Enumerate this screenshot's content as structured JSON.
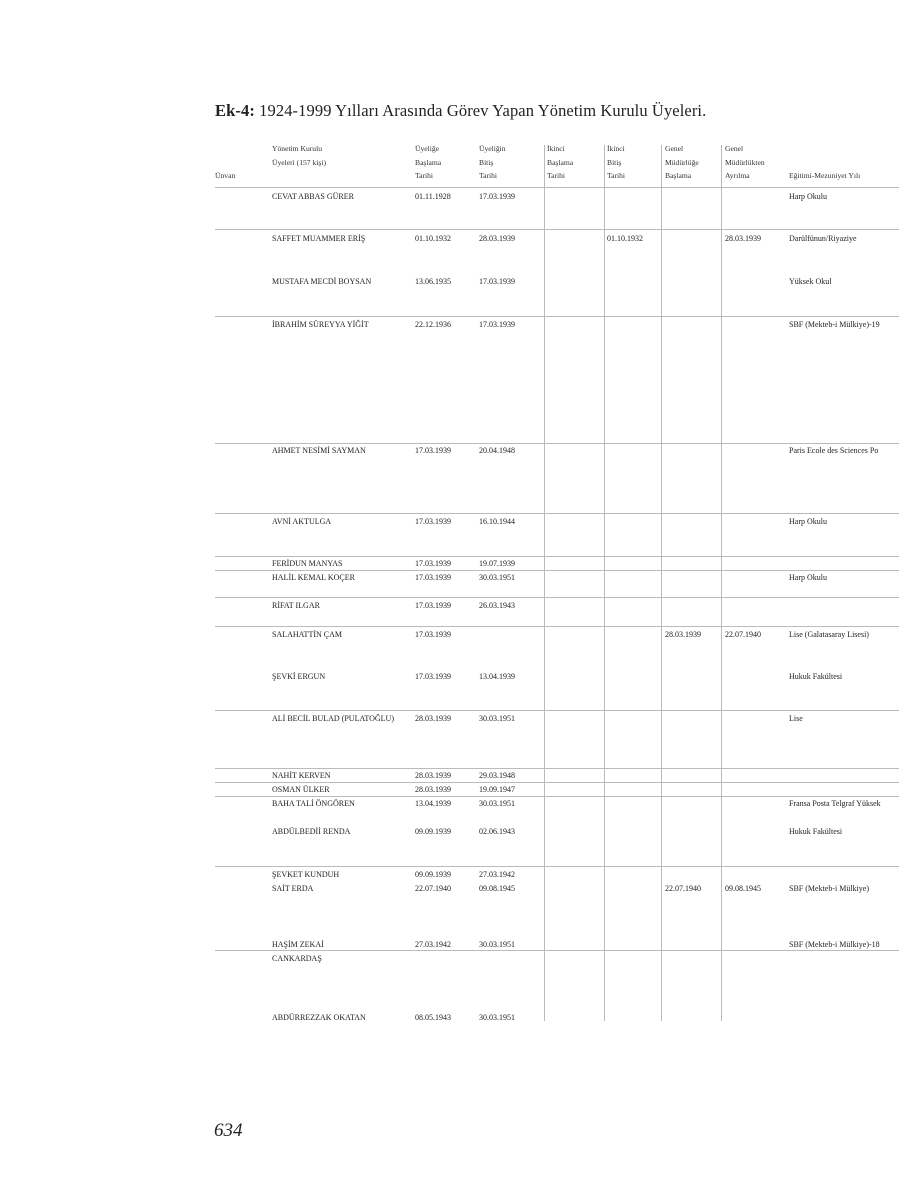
{
  "title": {
    "prefix": "Ek-4:",
    "text": " 1924-1999 Yılları Arasında Görev Yapan Yönetim Kurulu Üyeleri."
  },
  "columns": [
    {
      "lines": [
        "",
        "",
        "Ünvan"
      ]
    },
    {
      "lines": [
        "Yönetim Kurulu",
        "Üyeleri (157 kişi)",
        ""
      ]
    },
    {
      "lines": [
        "Üyeliğe",
        "Başlama",
        "Tarihi"
      ]
    },
    {
      "lines": [
        "Üyeliğin",
        "Bitiş",
        "Tarihi"
      ]
    },
    {
      "lines": [
        "İkinci",
        "Başlama",
        "Tarihi"
      ]
    },
    {
      "lines": [
        "İkinci",
        "Bitiş",
        "Tarihi"
      ]
    },
    {
      "lines": [
        "Genel",
        "Müdürlüğe",
        "Başlama"
      ]
    },
    {
      "lines": [
        "Genel",
        "Müdürlükten",
        "Ayrılma"
      ]
    },
    {
      "lines": [
        "",
        "",
        "Eğitimi-Mezuniyet Yılı"
      ]
    }
  ],
  "rows": [
    [
      "",
      "CEVAT ABBAS GÜRER",
      "01.11.1928",
      "17.03.1939",
      "",
      "",
      "",
      "",
      "Harp Okulu"
    ],
    [
      "",
      "SAFFET MUAMMER ERİŞ",
      "01.10.1932",
      "28.03.1939",
      "",
      "01.10.1932",
      "",
      "28.03.1939",
      "Darülfünun/Riyaziye"
    ],
    [
      "",
      "MUSTAFA MECDİ BOYSAN",
      "13.06.1935",
      "17.03.1939",
      "",
      "",
      "",
      "",
      "Yüksek Okul"
    ],
    [
      "",
      "İBRAHİM SÜREYYA YİĞİT",
      "22.12.1936",
      "17.03.1939",
      "",
      "",
      "",
      "",
      "SBF (Mekteb-i Mülkiye)-19"
    ],
    [
      "",
      "AHMET NESİMİ SAYMAN",
      "17.03.1939",
      "20.04.1948",
      "",
      "",
      "",
      "",
      "Paris Ecole des Sciences Po"
    ],
    [
      "",
      "AVNİ AKTULGA",
      "17.03.1939",
      "16.10.1944",
      "",
      "",
      "",
      "",
      "Harp Okulu"
    ],
    [
      "",
      "FERİDUN MANYAS",
      "17.03.1939",
      "19.07.1939",
      "",
      "",
      "",
      "",
      ""
    ],
    [
      "",
      "HALİL KEMAL KOÇER",
      "17.03.1939",
      "30.03.1951",
      "",
      "",
      "",
      "",
      "Harp Okulu"
    ],
    [
      "",
      "RİFAT ILGAR",
      "17.03.1939",
      "26.03.1943",
      "",
      "",
      "",
      "",
      ""
    ],
    [
      "",
      "SALAHATTİN ÇAM",
      "17.03.1939",
      "",
      "",
      "",
      "28.03.1939",
      "22.07.1940",
      "Lise (Galatasaray Lisesi)"
    ],
    [
      "",
      "ŞEVKİ ERGUN",
      "17.03.1939",
      "13.04.1939",
      "",
      "",
      "",
      "",
      "Hukuk Fakültesi"
    ],
    [
      "",
      "ALİ BECİL BULAD (PULATOĞLU)",
      "28.03.1939",
      "30.03.1951",
      "",
      "",
      "",
      "",
      "Lise"
    ],
    [
      "",
      "NAHİT KERVEN",
      "28.03.1939",
      "29.03.1948",
      "",
      "",
      "",
      "",
      ""
    ],
    [
      "",
      "OSMAN ÜLKER",
      "28.03.1939",
      "19.09.1947",
      "",
      "",
      "",
      "",
      ""
    ],
    [
      "",
      "BAHA TALİ ÖNGÖREN",
      "13.04.1939",
      "30.03.1951",
      "",
      "",
      "",
      "",
      "Fransa Posta Telgraf Yüksek"
    ],
    [
      "",
      "ABDÜLBEDİİ RENDA",
      "09.09.1939",
      "02.06.1943",
      "",
      "",
      "",
      "",
      "Hukuk Fakültesi"
    ],
    [
      "",
      "ŞEVKET KUNDUH",
      "09.09.1939",
      "27.03.1942",
      "",
      "",
      "",
      "",
      ""
    ],
    [
      "",
      "SAİT ERDA",
      "22.07.1940",
      "09.08.1945",
      "",
      "",
      "22.07.1940",
      "09.08.1945",
      "SBF (Mekteb-i Mülkiye)"
    ],
    [
      "",
      "HAŞİM ZEKAİ",
      "27.03.1942",
      "30.03.1951",
      "",
      "",
      "",
      "",
      "SBF (Mekteb-i Mülkiye)-18"
    ],
    [
      "",
      "CANKARDAŞ",
      "",
      "",
      "",
      "",
      "",
      "",
      ""
    ],
    [
      "",
      "ABDÜRREZZAK OKATAN",
      "08.05.1943",
      "30.03.1951",
      "",
      "",
      "",
      "",
      ""
    ]
  ],
  "page_number": "634"
}
